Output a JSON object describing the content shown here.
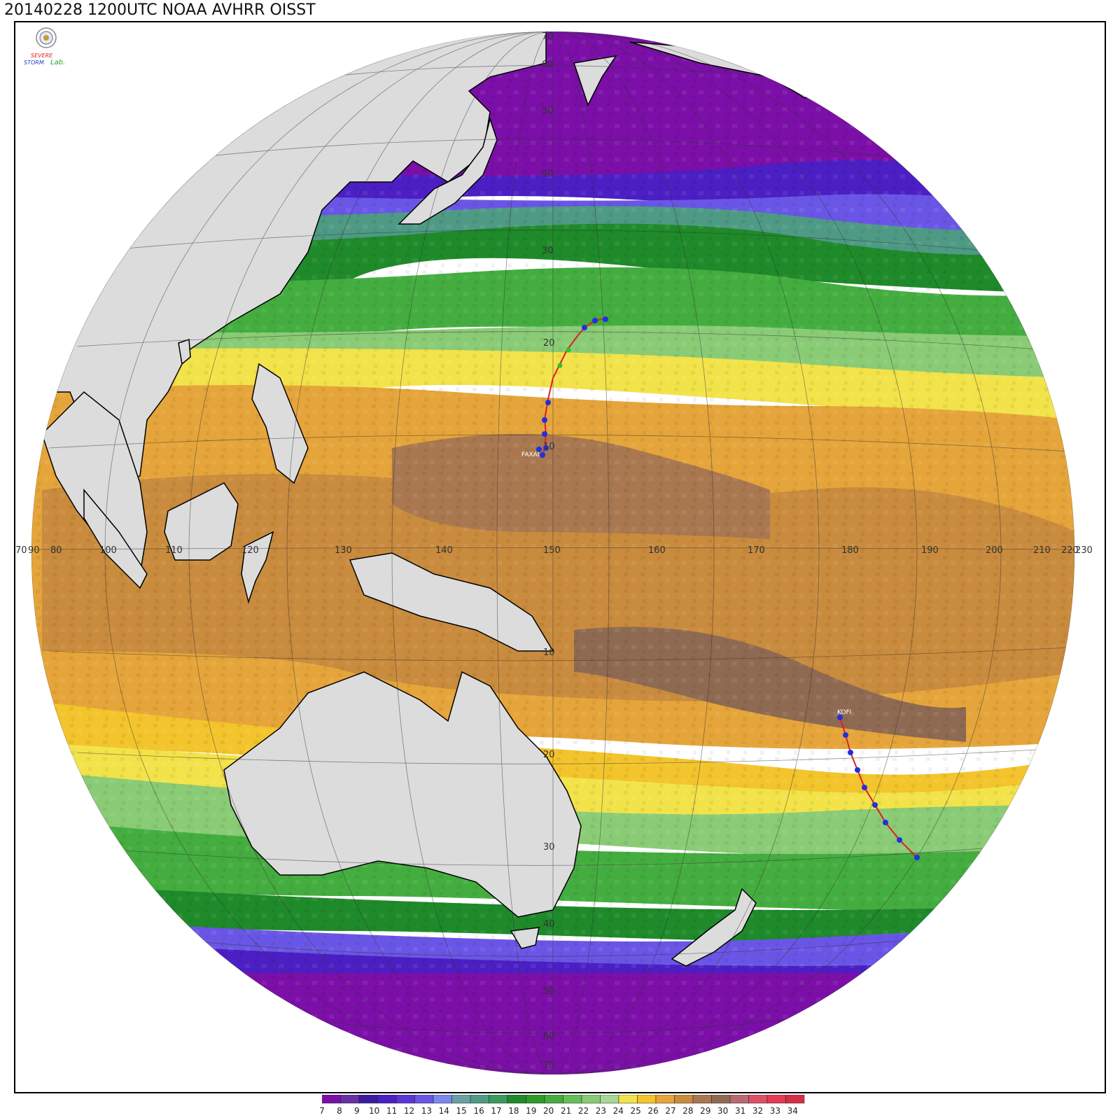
{
  "title": "20140228 1200UTC NOAA AVHRR OISST",
  "logo": {
    "text_top": "SEVERE",
    "text_bottom": "STORM",
    "text_lab": "Lab.",
    "icon": "emblem-icon"
  },
  "projection": "orthographic",
  "colorbar": {
    "unit_label": "",
    "ticks": [
      "7",
      "8",
      "9",
      "10",
      "11",
      "12",
      "13",
      "14",
      "15",
      "16",
      "17",
      "18",
      "19",
      "20",
      "21",
      "22",
      "23",
      "24",
      "25",
      "26",
      "27",
      "28",
      "29",
      "30",
      "31",
      "32",
      "33",
      "34"
    ],
    "colors": [
      "#7b0fa8",
      "#6a2fa3",
      "#3a1aa0",
      "#4b1fc3",
      "#5a35d6",
      "#6a56e6",
      "#7b86f0",
      "#6aa0a4",
      "#4e9a84",
      "#3a9a5c",
      "#1f8a2a",
      "#2e9a2a",
      "#44ad40",
      "#66bf58",
      "#8acb76",
      "#a6d896",
      "#f2e34a",
      "#f3c42c",
      "#e5a53a",
      "#c98b3d",
      "#a97850",
      "#8f6a52",
      "#b86a72",
      "#de4f68",
      "#e33a55",
      "#d42e45"
    ]
  },
  "grid_labels": {
    "longitudes": [
      "70",
      "80",
      "90",
      "100",
      "110",
      "120",
      "130",
      "140",
      "150",
      "160",
      "170",
      "180",
      "190",
      "200",
      "210",
      "220",
      "230"
    ],
    "latitudes": [
      "70",
      "60",
      "50",
      "40",
      "30",
      "20",
      "10",
      "10",
      "20",
      "30",
      "40",
      "50",
      "60",
      "70"
    ]
  },
  "storms": [
    {
      "name": "FAXAI"
    },
    {
      "name": "KOFI"
    }
  ]
}
